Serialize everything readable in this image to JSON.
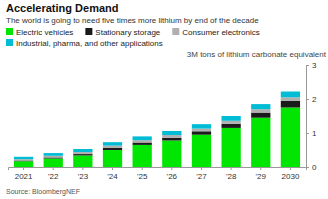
{
  "chart_data": {
    "type": "bar",
    "stacked": true,
    "title": "Accelerating Demand",
    "subtitle": "The world is going to need five times more lithium by end of the decade",
    "ylabel": "3M tons of lithium carbonate equivalent",
    "annotations": [
      "Source: BloombergNEF"
    ],
    "categories": [
      "2021",
      "'22",
      "'23",
      "'24",
      "'25",
      "'26",
      "'27",
      "'28",
      "'29",
      "2030"
    ],
    "series": [
      {
        "name": "Electric vehicles",
        "color": "#00e600",
        "values": [
          0.17,
          0.25,
          0.34,
          0.5,
          0.65,
          0.78,
          0.95,
          1.15,
          1.45,
          1.75
        ]
      },
      {
        "name": "Stationary storage",
        "color": "#1a1a1a",
        "values": [
          0.02,
          0.03,
          0.04,
          0.06,
          0.07,
          0.08,
          0.1,
          0.12,
          0.15,
          0.2
        ]
      },
      {
        "name": "Consumer electronics",
        "color": "#b0b0b0",
        "values": [
          0.04,
          0.05,
          0.06,
          0.07,
          0.07,
          0.08,
          0.08,
          0.09,
          0.1,
          0.1
        ]
      },
      {
        "name": "Industrial, pharma, and other applications",
        "color": "#00bcd4",
        "values": [
          0.07,
          0.08,
          0.09,
          0.1,
          0.11,
          0.12,
          0.13,
          0.14,
          0.15,
          0.17
        ]
      }
    ],
    "ylim": [
      0,
      3
    ],
    "yticks": [
      0,
      1,
      2,
      3
    ],
    "grid": false,
    "legend": "top"
  }
}
